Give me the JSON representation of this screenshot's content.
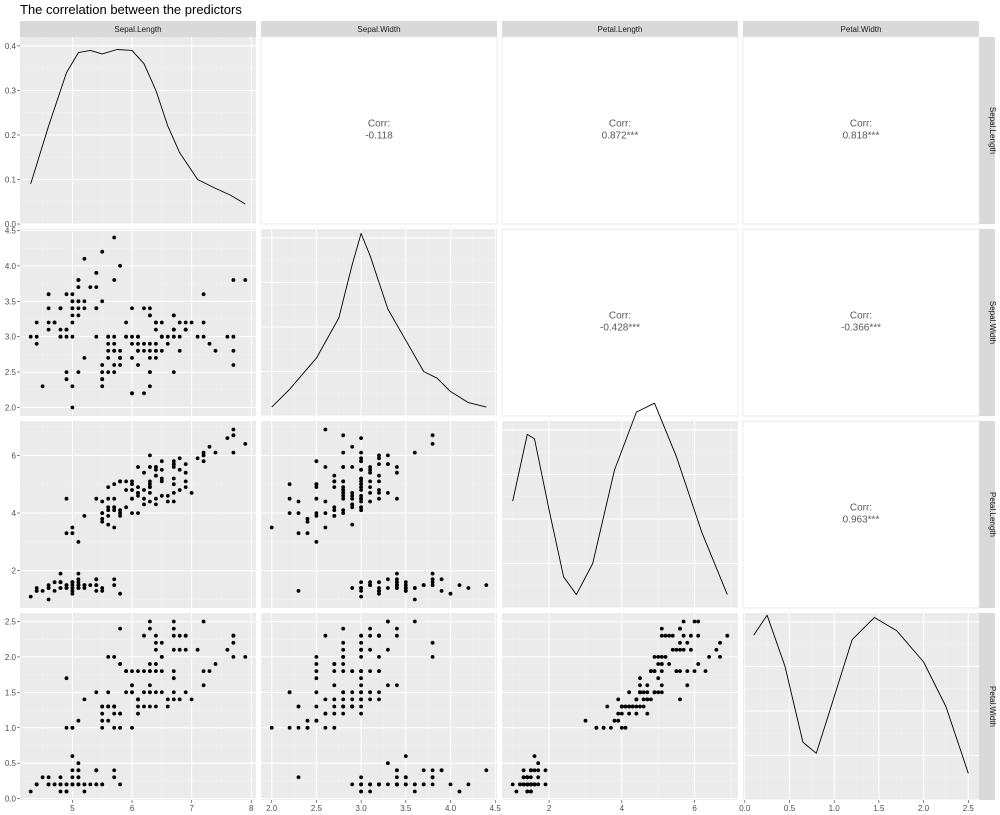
{
  "chart_data": {
    "type": "scatter-matrix",
    "title": "The correlation between the predictors",
    "variables": [
      "Sepal.Length",
      "Sepal.Width",
      "Petal.Length",
      "Petal.Width"
    ],
    "axis_ranges": {
      "Sepal.Length": [
        4.12,
        8.08
      ],
      "Sepal.Width": [
        1.88,
        4.52
      ],
      "Petal.Length": [
        0.705,
        7.195
      ],
      "Petal.Width": [
        -0.02,
        2.62
      ]
    },
    "tick_labels": {
      "Sepal.Length": [
        "5",
        "6",
        "7",
        "8"
      ],
      "Sepal.Width": [
        "2.0",
        "2.5",
        "3.0",
        "3.5",
        "4.0",
        "4.5"
      ],
      "Petal.Length": [
        "2",
        "4",
        "6"
      ],
      "Petal.Width": [
        "0.0",
        "0.5",
        "1.0",
        "1.5",
        "2.0",
        "2.5"
      ]
    },
    "density_ylim": [
      0,
      0.42
    ],
    "density_tick_labels": [
      "0.0",
      "0.1",
      "0.2",
      "0.3",
      "0.4"
    ],
    "densities": {
      "Sepal.Length": [
        [
          4.3,
          0.09
        ],
        [
          4.6,
          0.22
        ],
        [
          4.9,
          0.34
        ],
        [
          5.1,
          0.385
        ],
        [
          5.3,
          0.39
        ],
        [
          5.5,
          0.382
        ],
        [
          5.75,
          0.392
        ],
        [
          6.0,
          0.39
        ],
        [
          6.2,
          0.36
        ],
        [
          6.4,
          0.3
        ],
        [
          6.6,
          0.22
        ],
        [
          6.8,
          0.16
        ],
        [
          7.1,
          0.1
        ],
        [
          7.4,
          0.08
        ],
        [
          7.65,
          0.065
        ],
        [
          7.9,
          0.045
        ]
      ],
      "Sepal.Width": [
        [
          2.0,
          0.02
        ],
        [
          2.2,
          0.06
        ],
        [
          2.5,
          0.13
        ],
        [
          2.75,
          0.22
        ],
        [
          2.9,
          0.34
        ],
        [
          3.0,
          0.41
        ],
        [
          3.1,
          0.36
        ],
        [
          3.3,
          0.24
        ],
        [
          3.5,
          0.17
        ],
        [
          3.7,
          0.1
        ],
        [
          3.85,
          0.085
        ],
        [
          4.0,
          0.055
        ],
        [
          4.2,
          0.03
        ],
        [
          4.4,
          0.02
        ]
      ],
      "Petal.Length": [
        [
          1.0,
          0.24
        ],
        [
          1.4,
          0.39
        ],
        [
          1.6,
          0.38
        ],
        [
          2.0,
          0.22
        ],
        [
          2.4,
          0.07
        ],
        [
          2.75,
          0.03
        ],
        [
          3.2,
          0.1
        ],
        [
          3.8,
          0.31
        ],
        [
          4.4,
          0.44
        ],
        [
          4.9,
          0.46
        ],
        [
          5.5,
          0.34
        ],
        [
          6.2,
          0.17
        ],
        [
          6.9,
          0.03
        ]
      ],
      "Petal.Width": [
        [
          0.1,
          0.37
        ],
        [
          0.25,
          0.415
        ],
        [
          0.45,
          0.3
        ],
        [
          0.65,
          0.13
        ],
        [
          0.8,
          0.105
        ],
        [
          0.95,
          0.2
        ],
        [
          1.2,
          0.36
        ],
        [
          1.45,
          0.41
        ],
        [
          1.7,
          0.38
        ],
        [
          2.0,
          0.31
        ],
        [
          2.25,
          0.21
        ],
        [
          2.5,
          0.06
        ]
      ]
    },
    "correlations": [
      {
        "row": "Sepal.Length",
        "col": "Sepal.Width",
        "label": "Corr:",
        "value": "-0.118"
      },
      {
        "row": "Sepal.Length",
        "col": "Petal.Length",
        "label": "Corr:",
        "value": "0.872***"
      },
      {
        "row": "Sepal.Length",
        "col": "Petal.Width",
        "label": "Corr:",
        "value": "0.818***"
      },
      {
        "row": "Sepal.Width",
        "col": "Petal.Length",
        "label": "Corr:",
        "value": "-0.428***"
      },
      {
        "row": "Sepal.Width",
        "col": "Petal.Width",
        "label": "Corr:",
        "value": "-0.366***"
      },
      {
        "row": "Petal.Length",
        "col": "Petal.Width",
        "label": "Corr:",
        "value": "0.963***"
      }
    ],
    "observations": [
      [
        5.1,
        3.5,
        1.4,
        0.2
      ],
      [
        4.9,
        3.0,
        1.4,
        0.2
      ],
      [
        4.7,
        3.2,
        1.3,
        0.2
      ],
      [
        4.6,
        3.1,
        1.5,
        0.2
      ],
      [
        5.0,
        3.6,
        1.4,
        0.2
      ],
      [
        5.4,
        3.9,
        1.7,
        0.4
      ],
      [
        4.6,
        3.4,
        1.4,
        0.3
      ],
      [
        5.0,
        3.4,
        1.5,
        0.2
      ],
      [
        4.4,
        2.9,
        1.4,
        0.2
      ],
      [
        4.9,
        3.1,
        1.5,
        0.1
      ],
      [
        5.4,
        3.7,
        1.5,
        0.2
      ],
      [
        4.8,
        3.4,
        1.6,
        0.2
      ],
      [
        4.8,
        3.0,
        1.4,
        0.1
      ],
      [
        4.3,
        3.0,
        1.1,
        0.1
      ],
      [
        5.8,
        4.0,
        1.2,
        0.2
      ],
      [
        5.7,
        4.4,
        1.5,
        0.4
      ],
      [
        5.4,
        3.9,
        1.3,
        0.4
      ],
      [
        5.1,
        3.5,
        1.4,
        0.3
      ],
      [
        5.7,
        3.8,
        1.7,
        0.3
      ],
      [
        5.1,
        3.8,
        1.5,
        0.3
      ],
      [
        5.4,
        3.4,
        1.7,
        0.2
      ],
      [
        5.1,
        3.7,
        1.5,
        0.4
      ],
      [
        4.6,
        3.6,
        1.0,
        0.2
      ],
      [
        5.1,
        3.3,
        1.7,
        0.5
      ],
      [
        4.8,
        3.4,
        1.9,
        0.2
      ],
      [
        5.0,
        3.0,
        1.6,
        0.2
      ],
      [
        5.0,
        3.4,
        1.6,
        0.4
      ],
      [
        5.2,
        3.5,
        1.5,
        0.2
      ],
      [
        5.2,
        3.4,
        1.4,
        0.2
      ],
      [
        4.7,
        3.2,
        1.6,
        0.2
      ],
      [
        4.8,
        3.1,
        1.6,
        0.2
      ],
      [
        5.4,
        3.4,
        1.5,
        0.4
      ],
      [
        5.2,
        4.1,
        1.5,
        0.1
      ],
      [
        5.5,
        4.2,
        1.4,
        0.2
      ],
      [
        4.9,
        3.1,
        1.5,
        0.2
      ],
      [
        5.0,
        3.2,
        1.2,
        0.2
      ],
      [
        5.5,
        3.5,
        1.3,
        0.2
      ],
      [
        4.9,
        3.6,
        1.4,
        0.1
      ],
      [
        4.4,
        3.0,
        1.3,
        0.2
      ],
      [
        5.1,
        3.4,
        1.5,
        0.2
      ],
      [
        5.0,
        3.5,
        1.3,
        0.3
      ],
      [
        4.5,
        2.3,
        1.3,
        0.3
      ],
      [
        4.4,
        3.2,
        1.3,
        0.2
      ],
      [
        5.0,
        3.5,
        1.6,
        0.6
      ],
      [
        5.1,
        3.8,
        1.9,
        0.4
      ],
      [
        4.8,
        3.0,
        1.4,
        0.3
      ],
      [
        5.1,
        3.8,
        1.6,
        0.2
      ],
      [
        4.6,
        3.2,
        1.4,
        0.2
      ],
      [
        5.3,
        3.7,
        1.5,
        0.2
      ],
      [
        5.0,
        3.3,
        1.4,
        0.2
      ],
      [
        7.0,
        3.2,
        4.7,
        1.4
      ],
      [
        6.4,
        3.2,
        4.5,
        1.5
      ],
      [
        6.9,
        3.1,
        4.9,
        1.5
      ],
      [
        5.5,
        2.3,
        4.0,
        1.3
      ],
      [
        6.5,
        2.8,
        4.6,
        1.5
      ],
      [
        5.7,
        2.8,
        4.5,
        1.3
      ],
      [
        6.3,
        3.3,
        4.7,
        1.6
      ],
      [
        4.9,
        2.4,
        3.3,
        1.0
      ],
      [
        6.6,
        2.9,
        4.6,
        1.3
      ],
      [
        5.2,
        2.7,
        3.9,
        1.4
      ],
      [
        5.0,
        2.0,
        3.5,
        1.0
      ],
      [
        5.9,
        3.0,
        4.2,
        1.5
      ],
      [
        6.0,
        2.2,
        4.0,
        1.0
      ],
      [
        6.1,
        2.9,
        4.7,
        1.4
      ],
      [
        5.6,
        2.9,
        3.6,
        1.3
      ],
      [
        6.7,
        3.1,
        4.4,
        1.4
      ],
      [
        5.6,
        3.0,
        4.5,
        1.5
      ],
      [
        5.8,
        2.7,
        4.1,
        1.0
      ],
      [
        6.2,
        2.2,
        4.5,
        1.5
      ],
      [
        5.6,
        2.5,
        3.9,
        1.1
      ],
      [
        5.9,
        3.2,
        4.8,
        1.8
      ],
      [
        6.1,
        2.8,
        4.0,
        1.3
      ],
      [
        6.3,
        2.5,
        4.9,
        1.5
      ],
      [
        6.1,
        2.8,
        4.7,
        1.2
      ],
      [
        6.4,
        2.9,
        4.3,
        1.3
      ],
      [
        6.6,
        3.0,
        4.4,
        1.4
      ],
      [
        6.8,
        2.8,
        4.8,
        1.4
      ],
      [
        6.7,
        3.0,
        5.0,
        1.7
      ],
      [
        6.0,
        2.9,
        4.5,
        1.5
      ],
      [
        5.7,
        2.6,
        3.5,
        1.0
      ],
      [
        5.5,
        2.4,
        3.8,
        1.1
      ],
      [
        5.5,
        2.4,
        3.7,
        1.0
      ],
      [
        5.8,
        2.7,
        3.9,
        1.2
      ],
      [
        6.0,
        2.7,
        5.1,
        1.6
      ],
      [
        5.4,
        3.0,
        4.5,
        1.5
      ],
      [
        6.0,
        3.4,
        4.5,
        1.6
      ],
      [
        6.7,
        3.1,
        4.7,
        1.5
      ],
      [
        6.3,
        2.3,
        4.4,
        1.3
      ],
      [
        5.6,
        3.0,
        4.1,
        1.3
      ],
      [
        5.5,
        2.5,
        4.0,
        1.3
      ],
      [
        5.5,
        2.6,
        4.4,
        1.2
      ],
      [
        6.1,
        3.0,
        4.6,
        1.4
      ],
      [
        5.8,
        2.6,
        4.0,
        1.2
      ],
      [
        5.0,
        2.3,
        3.3,
        1.0
      ],
      [
        5.6,
        2.7,
        4.2,
        1.3
      ],
      [
        5.7,
        3.0,
        4.2,
        1.2
      ],
      [
        5.7,
        2.9,
        4.2,
        1.3
      ],
      [
        6.2,
        2.9,
        4.3,
        1.3
      ],
      [
        5.1,
        2.5,
        3.0,
        1.1
      ],
      [
        5.7,
        2.8,
        4.1,
        1.3
      ],
      [
        6.3,
        3.3,
        6.0,
        2.5
      ],
      [
        5.8,
        2.7,
        5.1,
        1.9
      ],
      [
        7.1,
        3.0,
        5.9,
        2.1
      ],
      [
        6.3,
        2.9,
        5.6,
        1.8
      ],
      [
        6.5,
        3.0,
        5.8,
        2.2
      ],
      [
        7.6,
        3.0,
        6.6,
        2.1
      ],
      [
        4.9,
        2.5,
        4.5,
        1.7
      ],
      [
        7.3,
        2.9,
        6.3,
        1.8
      ],
      [
        6.7,
        2.5,
        5.8,
        1.8
      ],
      [
        7.2,
        3.6,
        6.1,
        2.5
      ],
      [
        6.5,
        3.2,
        5.1,
        2.0
      ],
      [
        6.4,
        2.7,
        5.3,
        1.9
      ],
      [
        6.8,
        3.0,
        5.5,
        2.1
      ],
      [
        5.7,
        2.5,
        5.0,
        2.0
      ],
      [
        5.8,
        2.8,
        5.1,
        2.4
      ],
      [
        6.4,
        3.2,
        5.3,
        2.3
      ],
      [
        6.5,
        3.0,
        5.5,
        1.8
      ],
      [
        7.7,
        3.8,
        6.7,
        2.2
      ],
      [
        7.7,
        2.6,
        6.9,
        2.3
      ],
      [
        6.0,
        2.2,
        5.0,
        1.5
      ],
      [
        6.9,
        3.2,
        5.7,
        2.3
      ],
      [
        5.6,
        2.8,
        4.9,
        2.0
      ],
      [
        7.7,
        2.8,
        6.7,
        2.0
      ],
      [
        6.3,
        2.7,
        4.9,
        1.8
      ],
      [
        6.7,
        3.3,
        5.7,
        2.1
      ],
      [
        7.2,
        3.2,
        6.0,
        1.8
      ],
      [
        6.2,
        2.8,
        4.8,
        1.8
      ],
      [
        6.1,
        3.0,
        4.9,
        1.8
      ],
      [
        6.4,
        2.8,
        5.6,
        2.1
      ],
      [
        7.2,
        3.0,
        5.8,
        1.6
      ],
      [
        7.4,
        2.8,
        6.1,
        1.9
      ],
      [
        7.9,
        3.8,
        6.4,
        2.0
      ],
      [
        6.4,
        2.8,
        5.6,
        2.2
      ],
      [
        6.3,
        2.8,
        5.1,
        1.5
      ],
      [
        6.1,
        2.6,
        5.6,
        1.4
      ],
      [
        7.7,
        3.0,
        6.1,
        2.3
      ],
      [
        6.3,
        3.4,
        5.6,
        2.4
      ],
      [
        6.4,
        3.1,
        5.5,
        1.8
      ],
      [
        6.0,
        3.0,
        4.8,
        1.8
      ],
      [
        6.9,
        3.1,
        5.4,
        2.1
      ],
      [
        6.7,
        3.1,
        5.6,
        2.4
      ],
      [
        6.9,
        3.1,
        5.1,
        2.3
      ],
      [
        5.8,
        2.7,
        5.1,
        1.9
      ],
      [
        6.8,
        3.2,
        5.9,
        2.3
      ],
      [
        6.7,
        3.3,
        5.7,
        2.5
      ],
      [
        6.7,
        3.0,
        5.2,
        2.3
      ],
      [
        6.3,
        2.5,
        5.0,
        1.9
      ],
      [
        6.5,
        3.0,
        5.2,
        2.0
      ],
      [
        6.2,
        3.4,
        5.4,
        2.3
      ],
      [
        5.9,
        3.0,
        5.1,
        1.8
      ]
    ]
  }
}
